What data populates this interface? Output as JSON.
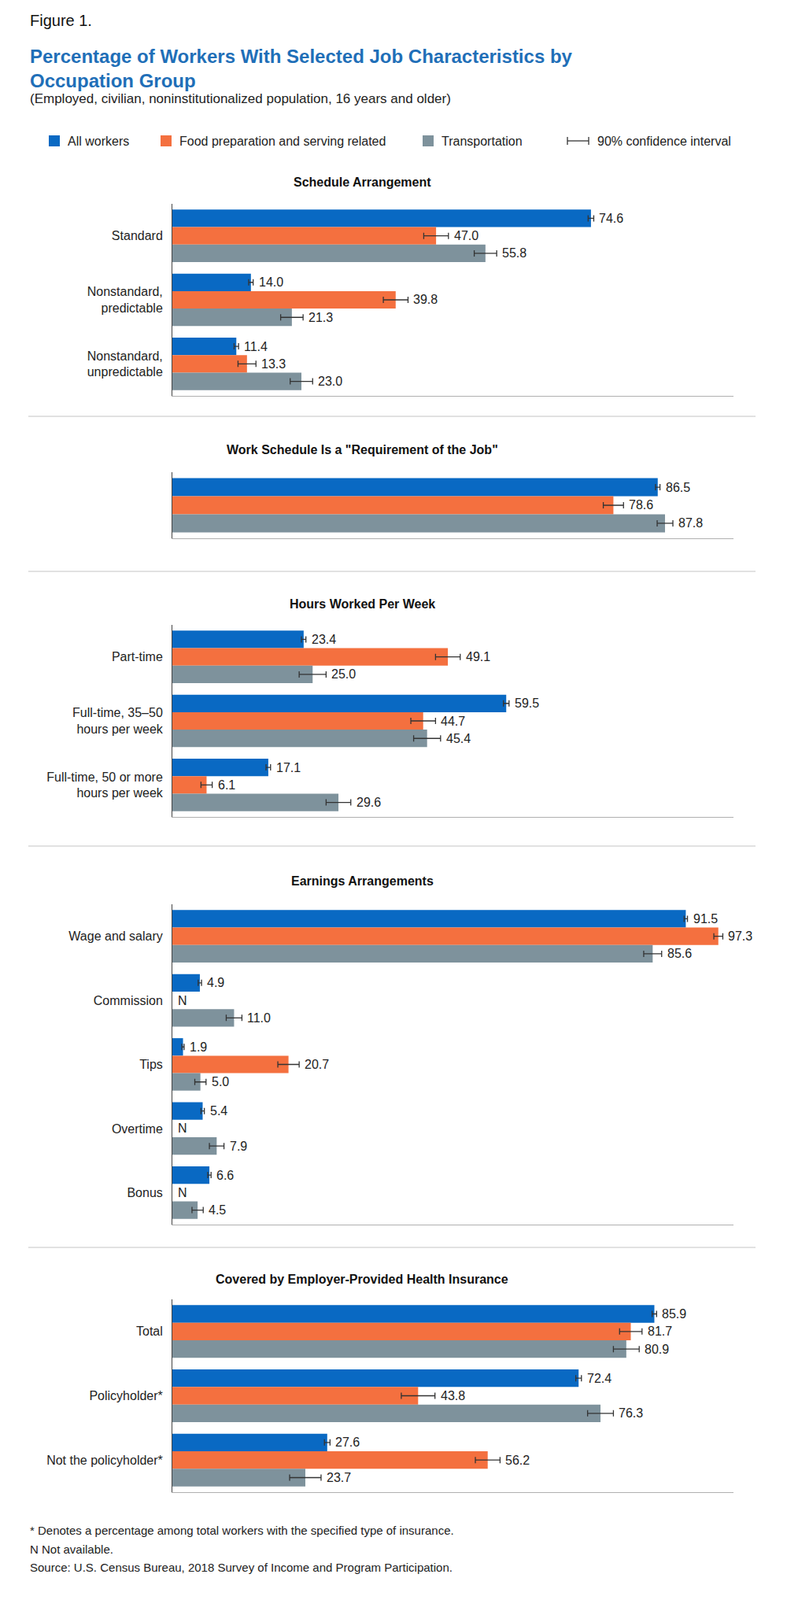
{
  "figure_label": "Figure 1.",
  "title": "Percentage of Workers With Selected Job Characteristics by Occupation Group",
  "subtitle": "(Employed, civilian, noninstitutionalized population, 16 years and older)",
  "confidence_interval_label": "90% confidence interval",
  "notes": [
    "* Denotes a percentage among total workers with the specified type of insurance.",
    "N Not available.",
    "Source: U.S. Census Bureau, 2018 Survey of Income and Program Participation."
  ],
  "chart_data": [
    {
      "type": "bar",
      "orientation": "horizontal",
      "title": "Schedule Arrangement",
      "categories": [
        "Standard",
        "Nonstandard, predictable",
        "Nonstandard, unpredictable"
      ],
      "series": [
        {
          "name": "All workers",
          "color": "#0969c3",
          "values": [
            74.6,
            14.0,
            11.4
          ],
          "value_labels": [
            "74.6",
            "14.0",
            "11.4"
          ],
          "errors": [
            0.5,
            0.4,
            0.4
          ]
        },
        {
          "name": "Food preparation and serving related",
          "color": "#f4703f",
          "values": [
            47.0,
            39.8,
            13.3
          ],
          "value_labels": [
            "47.0",
            "39.8",
            "13.3"
          ],
          "errors": [
            2.2,
            2.2,
            1.6
          ]
        },
        {
          "name": "Transportation",
          "color": "#7e929c",
          "values": [
            55.8,
            21.3,
            23.0
          ],
          "value_labels": [
            "55.8",
            "21.3",
            "23.0"
          ],
          "errors": [
            2.0,
            2.0,
            2.0
          ]
        }
      ],
      "xlim": [
        0,
        100
      ],
      "grid": false,
      "data_labels": true,
      "tick_labels": "y"
    },
    {
      "type": "bar",
      "orientation": "horizontal",
      "title": "Work Schedule Is a \"Requirement of the Job\"",
      "categories": [
        null
      ],
      "series": [
        {
          "name": "All workers",
          "color": "#0969c3",
          "values": [
            86.5
          ],
          "value_labels": [
            "86.5"
          ],
          "errors": [
            0.4
          ]
        },
        {
          "name": "Food preparation and serving related",
          "color": "#f4703f",
          "values": [
            78.6
          ],
          "value_labels": [
            "78.6"
          ],
          "errors": [
            1.8
          ]
        },
        {
          "name": "Transportation",
          "color": "#7e929c",
          "values": [
            87.8
          ],
          "value_labels": [
            "87.8"
          ],
          "errors": [
            1.4
          ]
        }
      ],
      "xlim": [
        0,
        100
      ],
      "grid": false,
      "data_labels": true,
      "tick_labels": "y"
    },
    {
      "type": "bar",
      "orientation": "horizontal",
      "title": "Hours Worked Per Week",
      "categories": [
        "Part-time",
        "Full-time, 35–50 hours per week",
        "Full-time, 50 or more hours per week"
      ],
      "series": [
        {
          "name": "All workers",
          "color": "#0969c3",
          "values": [
            23.4,
            59.5,
            17.1
          ],
          "value_labels": [
            "23.4",
            "59.5",
            "17.1"
          ],
          "errors": [
            0.4,
            0.5,
            0.4
          ]
        },
        {
          "name": "Food preparation and serving related",
          "color": "#f4703f",
          "values": [
            49.1,
            44.7,
            6.1
          ],
          "value_labels": [
            "49.1",
            "44.7",
            "6.1"
          ],
          "errors": [
            2.2,
            2.2,
            1.0
          ]
        },
        {
          "name": "Transportation",
          "color": "#7e929c",
          "values": [
            25.0,
            45.4,
            29.6
          ],
          "value_labels": [
            "25.0",
            "45.4",
            "29.6"
          ],
          "errors": [
            2.4,
            2.4,
            2.2
          ]
        }
      ],
      "xlim": [
        0,
        100
      ],
      "grid": false,
      "data_labels": true,
      "tick_labels": "y"
    },
    {
      "type": "bar",
      "orientation": "horizontal",
      "title": "Earnings Arrangements",
      "categories": [
        "Wage and salary",
        "Commission",
        "Tips",
        "Overtime",
        "Bonus"
      ],
      "series": [
        {
          "name": "All workers",
          "color": "#0969c3",
          "values": [
            91.5,
            4.9,
            1.9,
            5.4,
            6.6
          ],
          "value_labels": [
            "91.5",
            "4.9",
            "1.9",
            "5.4",
            "6.6"
          ],
          "errors": [
            0.3,
            0.3,
            0.2,
            0.3,
            0.3
          ]
        },
        {
          "name": "Food preparation and serving related",
          "color": "#f4703f",
          "values": [
            97.3,
            null,
            20.7,
            null,
            null
          ],
          "value_labels": [
            "97.3",
            "N",
            "20.7",
            "N",
            "N"
          ],
          "errors": [
            0.8,
            null,
            1.9,
            null,
            null
          ]
        },
        {
          "name": "Transportation",
          "color": "#7e929c",
          "values": [
            85.6,
            11.0,
            5.0,
            7.9,
            4.5
          ],
          "value_labels": [
            "85.6",
            "11.0",
            "5.0",
            "7.9",
            "4.5"
          ],
          "errors": [
            1.6,
            1.4,
            1.0,
            1.3,
            1.0
          ]
        }
      ],
      "xlim": [
        0,
        100
      ],
      "grid": false,
      "data_labels": true,
      "tick_labels": "y"
    },
    {
      "type": "bar",
      "orientation": "horizontal",
      "title": "Covered by Employer-Provided Health Insurance",
      "categories": [
        "Total",
        "Policyholder*",
        "Not the policyholder*"
      ],
      "series": [
        {
          "name": "All workers",
          "color": "#0969c3",
          "values": [
            85.9,
            72.4,
            27.6
          ],
          "value_labels": [
            "85.9",
            "72.4",
            "27.6"
          ],
          "errors": [
            0.4,
            0.5,
            0.5
          ]
        },
        {
          "name": "Food preparation and serving related",
          "color": "#f4703f",
          "values": [
            81.7,
            43.8,
            56.2
          ],
          "value_labels": [
            "81.7",
            "43.8",
            "56.2"
          ],
          "errors": [
            2.0,
            3.0,
            2.2
          ]
        },
        {
          "name": "Transportation",
          "color": "#7e929c",
          "values": [
            80.9,
            76.3,
            23.7
          ],
          "value_labels": [
            "80.9",
            "76.3",
            "23.7"
          ],
          "errors": [
            2.3,
            2.3,
            2.8
          ]
        }
      ],
      "xlim": [
        0,
        100
      ],
      "grid": false,
      "data_labels": true,
      "tick_labels": "y"
    }
  ]
}
